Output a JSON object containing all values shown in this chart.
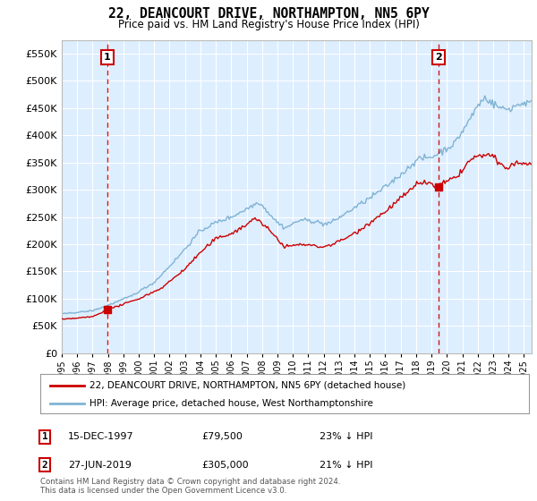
{
  "title": "22, DEANCOURT DRIVE, NORTHAMPTON, NN5 6PY",
  "subtitle": "Price paid vs. HM Land Registry's House Price Index (HPI)",
  "legend_line1": "22, DEANCOURT DRIVE, NORTHAMPTON, NN5 6PY (detached house)",
  "legend_line2": "HPI: Average price, detached house, West Northamptonshire",
  "purchase1_date": "15-DEC-1997",
  "purchase1_price": 79500,
  "purchase1_label": "1",
  "purchase1_hpi_pct": "23% ↓ HPI",
  "purchase1_x": 1997.958,
  "purchase2_date": "27-JUN-2019",
  "purchase2_price": 305000,
  "purchase2_label": "2",
  "purchase2_hpi_pct": "21% ↓ HPI",
  "purchase2_x": 2019.458,
  "footer": "Contains HM Land Registry data © Crown copyright and database right 2024.\nThis data is licensed under the Open Government Licence v3.0.",
  "red_color": "#cc0000",
  "blue_color": "#7fb3d3",
  "dashed_color": "#cc0000",
  "plot_bg_color": "#ddeeff",
  "background_color": "#ffffff",
  "grid_color": "#ffffff",
  "ylim": [
    0,
    575000
  ],
  "xlim_start": 1995.0,
  "xlim_end": 2025.5,
  "yticks": [
    0,
    50000,
    100000,
    150000,
    200000,
    250000,
    300000,
    350000,
    400000,
    450000,
    500000,
    550000
  ],
  "xticks": [
    1995,
    1996,
    1997,
    1998,
    1999,
    2000,
    2001,
    2002,
    2003,
    2004,
    2005,
    2006,
    2007,
    2008,
    2009,
    2010,
    2011,
    2012,
    2013,
    2014,
    2015,
    2016,
    2017,
    2018,
    2019,
    2020,
    2021,
    2022,
    2023,
    2024,
    2025
  ]
}
